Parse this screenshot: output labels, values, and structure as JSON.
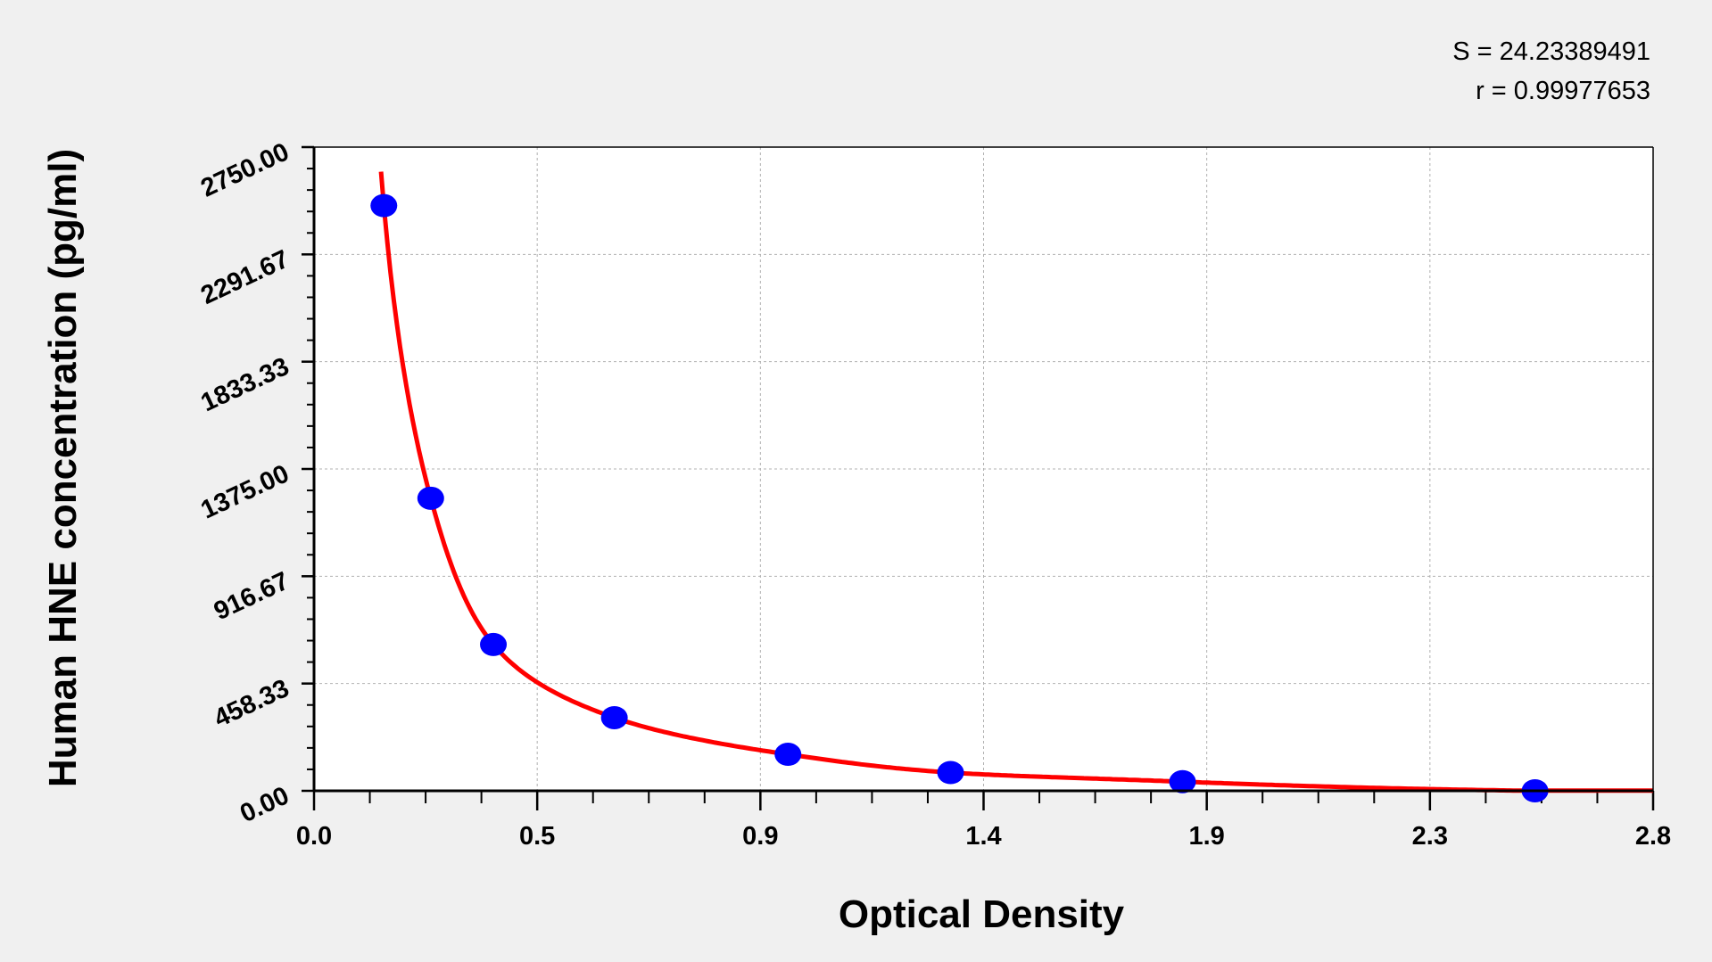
{
  "chart_data": {
    "type": "scatter",
    "xlabel": "Optical Density",
    "ylabel": "Human HNE concentration (pg/ml)",
    "xlim": [
      0,
      2.8
    ],
    "ylim": [
      0,
      2750
    ],
    "x_tick_labels": [
      "0.0",
      "0.5",
      "0.9",
      "1.4",
      "1.9",
      "2.3",
      "2.8"
    ],
    "y_tick_labels": [
      "0.00",
      "458.33",
      "916.67",
      "1375.00",
      "1833.33",
      "2291.67",
      "2750.00"
    ],
    "grid": true,
    "annotations": [
      "S = 24.23389491",
      "r = 0.99977653"
    ],
    "series": [
      {
        "marker_color": "#0000ff",
        "x": [
          0.146,
          0.244,
          0.375,
          0.628,
          0.991,
          1.331,
          1.816,
          2.553
        ],
        "y": [
          2500,
          1250,
          625,
          312.5,
          156,
          78,
          39,
          0
        ]
      }
    ],
    "fit_curve_color": "#ff0000"
  }
}
